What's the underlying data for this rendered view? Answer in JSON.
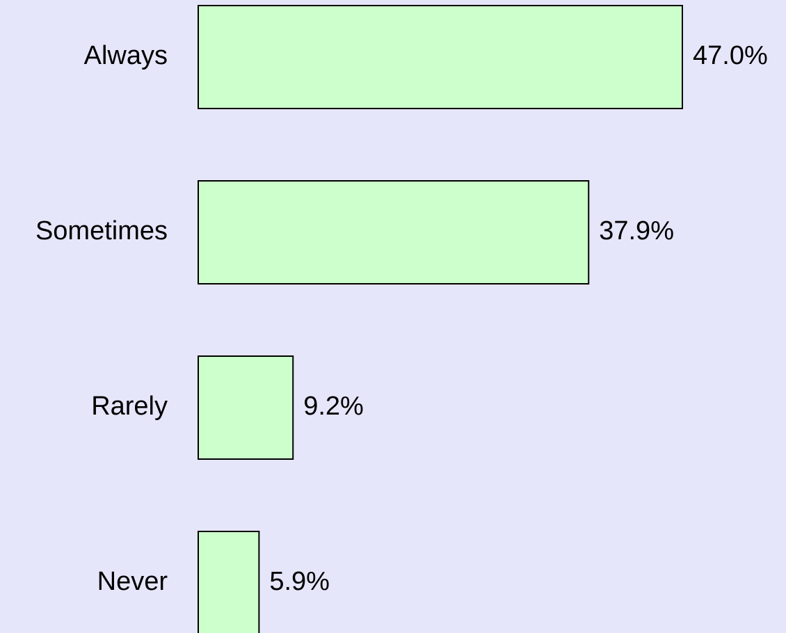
{
  "chart_data": {
    "type": "bar",
    "orientation": "horizontal",
    "categories": [
      "Always",
      "Sometimes",
      "Rarely",
      "Never"
    ],
    "values": [
      47.0,
      37.9,
      9.2,
      5.9
    ],
    "value_labels": [
      "47.0%",
      "37.9%",
      "9.2%",
      "5.9%"
    ],
    "color": "#ccffcc"
  }
}
